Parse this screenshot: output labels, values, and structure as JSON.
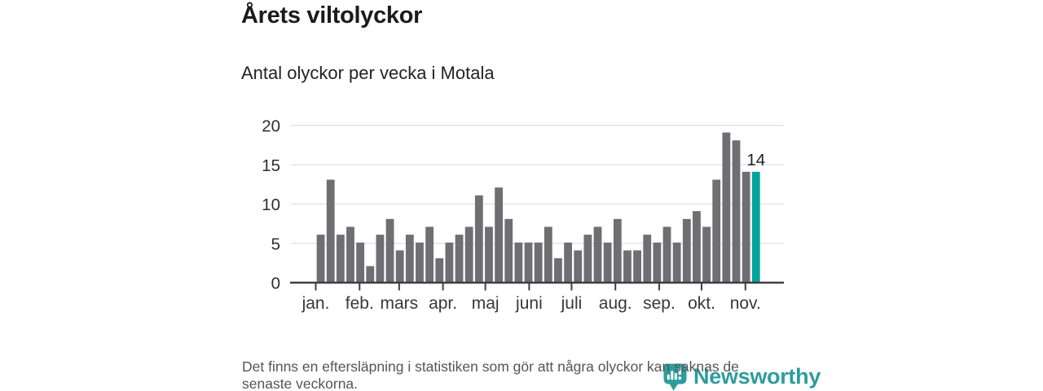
{
  "header": {
    "title": "Årets viltolyckor",
    "subtitle": "Antal olyckor per vecka i Motala"
  },
  "chart_data": {
    "type": "bar",
    "title": "Årets viltolyckor",
    "subtitle": "Antal olyckor per vecka i Motala",
    "x_unit": "vecka (week 1–45 of the year)",
    "x_tick_labels": [
      "jan.",
      "feb.",
      "mars",
      "apr.",
      "maj",
      "juni",
      "juli",
      "aug.",
      "sep.",
      "okt.",
      "nov."
    ],
    "values": [
      6,
      13,
      6,
      7,
      5,
      2,
      6,
      8,
      4,
      6,
      5,
      7,
      3,
      5,
      6,
      7,
      11,
      7,
      12,
      8,
      5,
      5,
      5,
      7,
      3,
      5,
      4,
      6,
      7,
      5,
      8,
      4,
      4,
      6,
      5,
      7,
      5,
      8,
      9,
      7,
      13,
      19,
      18,
      14,
      14
    ],
    "ylim": [
      0,
      20
    ],
    "yticks": [
      0,
      5,
      10,
      15,
      20
    ],
    "grid": "horizontal",
    "legend": "none",
    "bar_color": "#6e6e73",
    "highlight_color": "#00a49b",
    "highlight_last_bar": true,
    "annotation": {
      "label": "14",
      "bar_index": 44
    }
  },
  "footnote": {
    "lines": [
      "Det finns en eftersläpning i statistiken som gör att några olyckor kan saknas de",
      "senaste veckorna."
    ]
  },
  "watermark": {
    "brand": "Newsworthy",
    "color": "#2f9c9c"
  }
}
